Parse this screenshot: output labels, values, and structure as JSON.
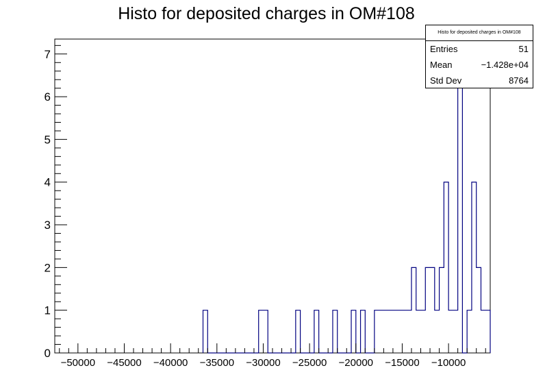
{
  "chart_data": {
    "type": "histogram",
    "title": "Histo for deposited charges in OM#108",
    "xlabel": "",
    "ylabel": "",
    "xlim": [
      -52500,
      -5500
    ],
    "ylim": [
      0,
      7.35
    ],
    "bin_width": 500,
    "x_ticks": [
      -50000,
      -45000,
      -40000,
      -35000,
      -30000,
      -25000,
      -20000,
      -15000,
      -10000
    ],
    "x_tick_labels": [
      "−50000",
      "−45000",
      "−40000",
      "−35000",
      "−30000",
      "−25000",
      "−20000",
      "−15000",
      "−10000"
    ],
    "y_ticks": [
      0,
      1,
      2,
      3,
      4,
      5,
      6,
      7
    ],
    "y_tick_labels": [
      "0",
      "1",
      "2",
      "3",
      "4",
      "5",
      "6",
      "7"
    ],
    "bins": [
      {
        "x": -36500,
        "count": 1
      },
      {
        "x": -30500,
        "count": 1
      },
      {
        "x": -30000,
        "count": 1
      },
      {
        "x": -26500,
        "count": 1
      },
      {
        "x": -24500,
        "count": 1
      },
      {
        "x": -22500,
        "count": 1
      },
      {
        "x": -20500,
        "count": 1
      },
      {
        "x": -19500,
        "count": 1
      },
      {
        "x": -18000,
        "count": 1
      },
      {
        "x": -17500,
        "count": 1
      },
      {
        "x": -17000,
        "count": 1
      },
      {
        "x": -16500,
        "count": 1
      },
      {
        "x": -16000,
        "count": 1
      },
      {
        "x": -15500,
        "count": 1
      },
      {
        "x": -15000,
        "count": 1
      },
      {
        "x": -14500,
        "count": 1
      },
      {
        "x": -14000,
        "count": 2
      },
      {
        "x": -13500,
        "count": 1
      },
      {
        "x": -13000,
        "count": 1
      },
      {
        "x": -12500,
        "count": 2
      },
      {
        "x": -12000,
        "count": 2
      },
      {
        "x": -11500,
        "count": 1
      },
      {
        "x": -11000,
        "count": 2
      },
      {
        "x": -10500,
        "count": 4
      },
      {
        "x": -10000,
        "count": 1
      },
      {
        "x": -9500,
        "count": 1
      },
      {
        "x": -9000,
        "count": 7
      },
      {
        "x": -8000,
        "count": 1
      },
      {
        "x": -7500,
        "count": 4
      },
      {
        "x": -7000,
        "count": 2
      },
      {
        "x": -6500,
        "count": 1
      },
      {
        "x": -6000,
        "count": 1
      }
    ],
    "line_color": "#000080",
    "stats_box": {
      "title": "Histo for deposited charges in OM#108",
      "rows": [
        {
          "label": "Entries",
          "value": "51"
        },
        {
          "label": "Mean",
          "value": "−1.428e+04"
        },
        {
          "label": "Std Dev",
          "value": "8764"
        }
      ]
    }
  }
}
